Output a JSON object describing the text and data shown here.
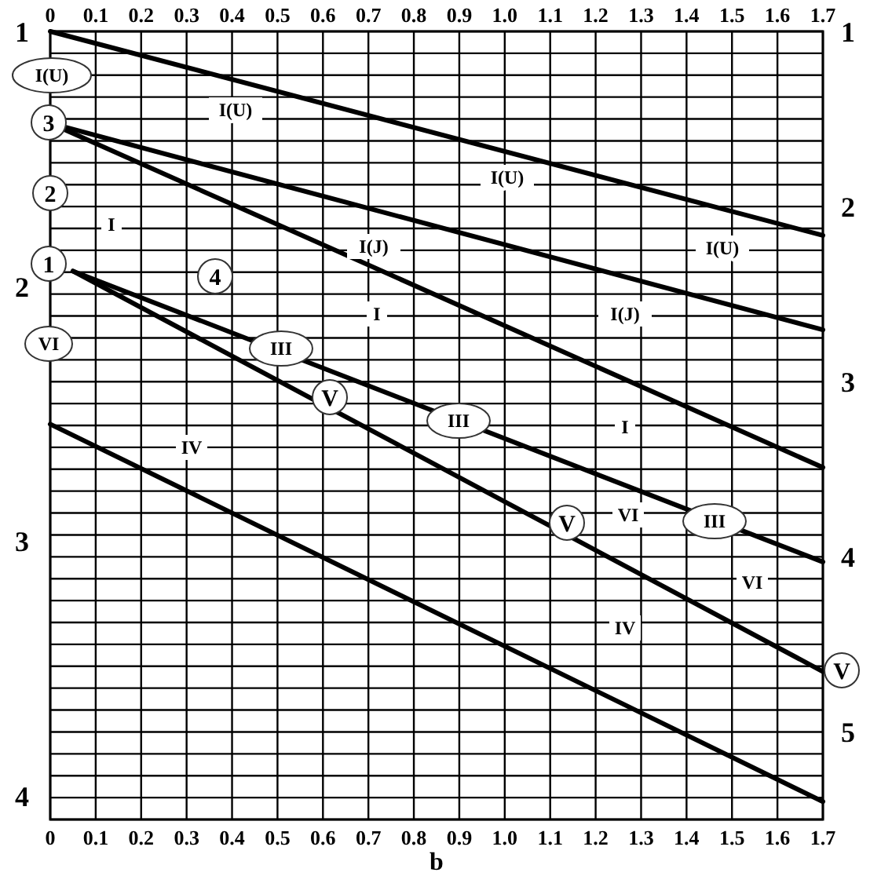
{
  "chart_data": {
    "type": "line",
    "xlabel": "b",
    "xlim": [
      0,
      1.7
    ],
    "xticks": [
      0,
      0.1,
      0.2,
      0.3,
      0.4,
      0.5,
      0.6,
      0.7,
      0.8,
      0.9,
      {
        "value": 1,
        "label": "1.0"
      },
      1.1,
      1.2,
      1.3,
      1.4,
      1.5,
      1.6,
      1.7
    ],
    "x2lim": [
      0,
      1.7
    ],
    "x2ticks": [
      0,
      0.1,
      0.2,
      0.3,
      0.4,
      0.5,
      0.6,
      0.7,
      0.8,
      0.9,
      {
        "value": 1,
        "label": "1.0"
      },
      1.1,
      1.2,
      1.3,
      1.4,
      1.5,
      1.6,
      1.7
    ],
    "ylim": [
      4.09,
      1
    ],
    "yticks": [
      1,
      2,
      3,
      4
    ],
    "y2lim": [
      5.5,
      1
    ],
    "y2ticks": [
      1,
      {
        "value": 1.125,
        "label": null
      },
      {
        "value": 1.25,
        "label": null
      },
      {
        "value": 1.375,
        "label": null
      },
      {
        "value": 1.5,
        "label": null
      },
      {
        "value": 1.625,
        "label": null
      },
      {
        "value": 1.75,
        "label": null
      },
      {
        "value": 1.875,
        "label": null
      },
      2,
      {
        "value": 2.125,
        "label": null
      },
      {
        "value": 2.25,
        "label": null
      },
      {
        "value": 2.375,
        "label": null
      },
      {
        "value": 2.5,
        "label": null
      },
      {
        "value": 2.625,
        "label": null
      },
      {
        "value": 2.75,
        "label": null
      },
      {
        "value": 2.875,
        "label": null
      },
      3,
      {
        "value": 3.125,
        "label": null
      },
      {
        "value": 3.25,
        "label": null
      },
      {
        "value": 3.375,
        "label": null
      },
      {
        "value": 3.5,
        "label": null
      },
      {
        "value": 3.625,
        "label": null
      },
      {
        "value": 3.75,
        "label": null
      },
      {
        "value": 3.875,
        "label": null
      },
      4,
      {
        "value": 4.125,
        "label": null
      },
      {
        "value": 4.25,
        "label": null
      },
      {
        "value": 4.375,
        "label": null
      },
      {
        "value": 4.5,
        "label": null
      },
      {
        "value": 4.625,
        "label": null
      },
      {
        "value": 4.75,
        "label": null
      },
      {
        "value": 4.875,
        "label": null
      },
      5,
      {
        "value": 5.125,
        "label": null
      },
      {
        "value": 5.25,
        "label": null
      },
      {
        "value": 5.375,
        "label": null
      },
      {
        "value": 5.5,
        "label": null
      }
    ],
    "grid": true,
    "line_style": "solid",
    "series": [
      {
        "color": "#000000",
        "x": [
          0,
          1.7
        ],
        "values": [
          1,
          1.8
        ]
      },
      {
        "color": "#000000",
        "x": [
          0,
          1.7
        ],
        "values": [
          1.36,
          2.17
        ]
      },
      {
        "color": "#000000",
        "x": [
          0,
          1.7
        ],
        "values": [
          1.36,
          2.71
        ]
      },
      {
        "color": "#000000",
        "x": [
          0.05,
          1.7
        ],
        "values": [
          1.94,
          3.08
        ]
      },
      {
        "color": "#000000",
        "x": [
          0.05,
          1.7
        ],
        "values": [
          1.94,
          3.51
        ]
      },
      {
        "color": "#000000",
        "x": [
          0,
          1.7
        ],
        "values": [
          2.54,
          4.02
        ]
      }
    ],
    "annotations": [
      "I(U)",
      "3",
      "2",
      "1",
      "VI",
      "4",
      "I(U)",
      "I(U)",
      "I(U)",
      "I(J)",
      "I(J)",
      "I",
      "I",
      "I",
      "III",
      "III",
      "III",
      "V",
      "V",
      "V",
      "IV",
      "IV",
      "VI",
      "VI"
    ]
  }
}
